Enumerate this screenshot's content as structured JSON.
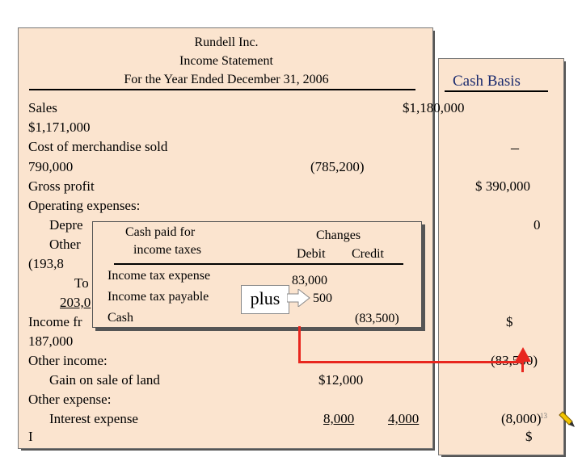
{
  "header": {
    "company": "Rundell Inc.",
    "statement": "Income Statement",
    "period": "For the Year Ended December 31, 2006",
    "cash_basis": "Cash Basis"
  },
  "lines": {
    "sales": "Sales",
    "sales_accrual": "$1,180,000",
    "sales_cash": "$1,171,000",
    "cogs": "Cost of merchandise sold",
    "cogs_cash_dash": "–",
    "cogs_accrual_cash": "790,000",
    "cogs_change": "(785,200)",
    "gross_profit": "Gross profit",
    "gross_profit_cash": "$  390,000",
    "operating_expenses": "Operating expenses:",
    "depr_label": "Depre",
    "depr_cash": "0",
    "other_label": "Other",
    "other_value": "(193,8",
    "total_label": "To",
    "total_value": "203,0",
    "income_from_label": "Income fr",
    "income_from_cash_dollar": "$",
    "income_from_value": "187,000",
    "other_income": "Other income:",
    "other_income_cash": "(83,500)",
    "gain_land": "Gain on sale of land",
    "gain_land_value": "$12,000",
    "other_expense": "Other expense:",
    "interest_expense": "Interest expense",
    "interest_accrual": "8,000",
    "interest_change": "4,000",
    "interest_cash": "(8,000)",
    "cut_label": "I",
    "cut_cash": "$"
  },
  "popup": {
    "title_line1": "Cash paid for",
    "title_line2": "income taxes",
    "changes": "Changes",
    "debit": "Debit",
    "credit": "Credit",
    "row1_label": "Income tax expense",
    "row1_value": "83,000",
    "row2_label": "Income tax payable",
    "row2_value": "500",
    "row3_label": "Cash",
    "row3_value": "(83,500)",
    "plus": "plus"
  },
  "colors": {
    "panel": "#fbe4cf",
    "arrow": "#e8261e"
  },
  "footer": {
    "slide_number": "13"
  }
}
